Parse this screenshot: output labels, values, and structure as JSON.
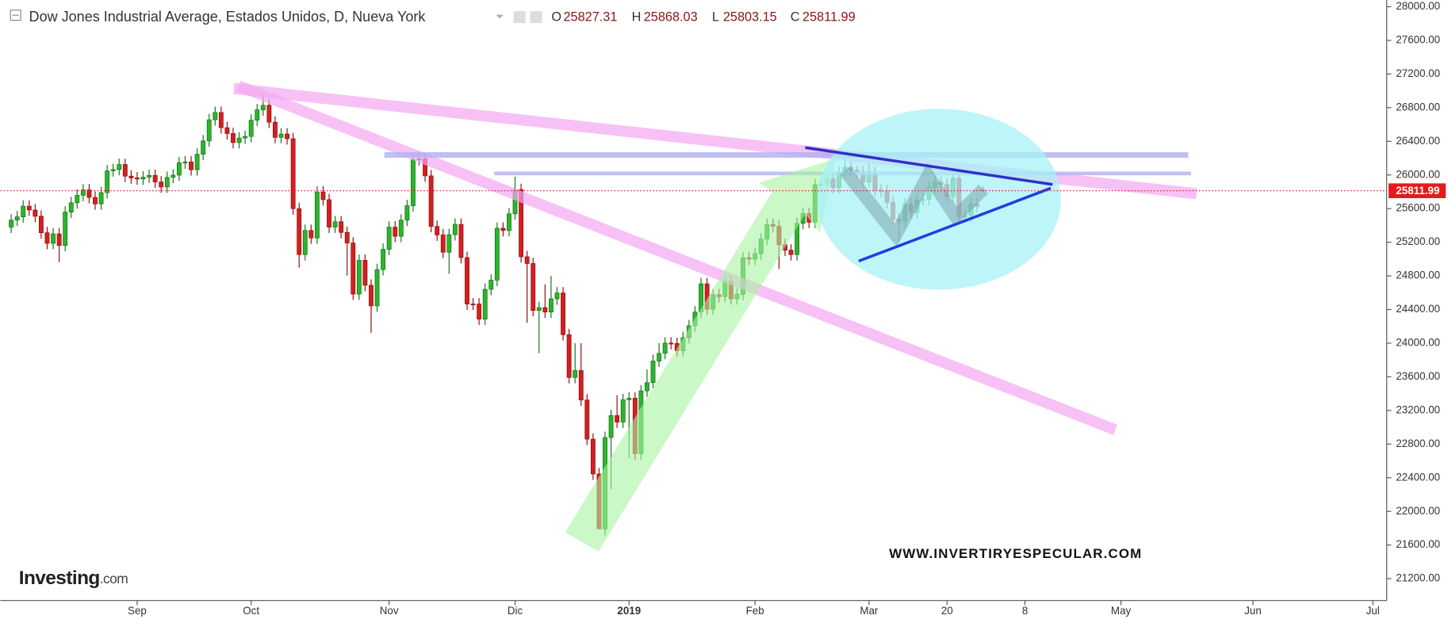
{
  "chart_data": {
    "type": "candlestick",
    "title": "Dow Jones Industrial Average, Estados Unidos, D, Nueva York",
    "ohlc_legend": [
      {
        "label": "O",
        "value": "25827.31"
      },
      {
        "label": "H",
        "value": "25868.03"
      },
      {
        "label": "L",
        "value": "25803.15"
      },
      {
        "label": "C",
        "value": "25811.99"
      }
    ],
    "last_price": 25811.99,
    "watermark": "WWW.INVERTIRYESPECULAR.COM",
    "logo": {
      "main": "Investing",
      "suffix": ".com"
    },
    "up_color": "#2bb52b",
    "down_color": "#d42020",
    "grid": false,
    "xlim": [
      -1.8,
      229.3
    ],
    "xticks": [
      {
        "value": 21,
        "label": "Sep"
      },
      {
        "value": 40,
        "label": "Oct"
      },
      {
        "value": 63,
        "label": "Nov"
      },
      {
        "value": 84,
        "label": "Dic"
      },
      {
        "value": 103,
        "label": "2019"
      },
      {
        "value": 124,
        "label": "Feb"
      },
      {
        "value": 143,
        "label": "Mar"
      },
      {
        "value": 156,
        "label": "20"
      },
      {
        "value": 169,
        "label": "8"
      },
      {
        "value": 185,
        "label": "May"
      },
      {
        "value": 207,
        "label": "Jun"
      },
      {
        "value": 227,
        "label": "Jul"
      }
    ],
    "ylim": [
      20940,
      28080
    ],
    "yticks": [
      {
        "value": 21200,
        "label": "21200.00"
      },
      {
        "value": 21600,
        "label": "21600.00"
      },
      {
        "value": 22000,
        "label": "22000.00"
      },
      {
        "value": 22400,
        "label": "22400.00"
      },
      {
        "value": 22800,
        "label": "22800.00"
      },
      {
        "value": 23200,
        "label": "23200.00"
      },
      {
        "value": 23600,
        "label": "23600.00"
      },
      {
        "value": 24000,
        "label": "24000.00"
      },
      {
        "value": 24400,
        "label": "24400.00"
      },
      {
        "value": 24800,
        "label": "24800.00"
      },
      {
        "value": 25200,
        "label": "25200.00"
      },
      {
        "value": 25600,
        "label": "25600.00"
      },
      {
        "value": 26000,
        "label": "26000.00"
      },
      {
        "value": 26400,
        "label": "26400.00"
      },
      {
        "value": 26800,
        "label": "26800.00"
      },
      {
        "value": 27200,
        "label": "27200.00"
      },
      {
        "value": 27600,
        "label": "27600.00"
      },
      {
        "value": 28000,
        "label": "28000.00"
      }
    ],
    "x": [
      0,
      1,
      2,
      3,
      4,
      5,
      6,
      7,
      8,
      9,
      10,
      11,
      12,
      13,
      14,
      15,
      16,
      17,
      18,
      19,
      20,
      21,
      22,
      23,
      24,
      25,
      26,
      27,
      28,
      29,
      30,
      31,
      32,
      33,
      34,
      35,
      36,
      37,
      38,
      39,
      40,
      41,
      42,
      43,
      44,
      45,
      46,
      47,
      48,
      49,
      50,
      51,
      52,
      53,
      54,
      55,
      56,
      57,
      58,
      59,
      60,
      61,
      62,
      63,
      64,
      65,
      66,
      67,
      68,
      69,
      70,
      71,
      72,
      73,
      74,
      75,
      76,
      77,
      78,
      79,
      80,
      81,
      82,
      83,
      84,
      85,
      86,
      87,
      88,
      89,
      90,
      91,
      92,
      93,
      94,
      95,
      96,
      97,
      98,
      99,
      100,
      101,
      102,
      103,
      104,
      105,
      106,
      107,
      108,
      109,
      110,
      111,
      112,
      113,
      114,
      115,
      116,
      117,
      118,
      119,
      120,
      121,
      122,
      123,
      124,
      125,
      126,
      127,
      128,
      129,
      130,
      131,
      132,
      133,
      134,
      135,
      136,
      137,
      138,
      139,
      140,
      141,
      142,
      143,
      144,
      145,
      146,
      147,
      148,
      149,
      150,
      151,
      152,
      153,
      154,
      155,
      156,
      157,
      158,
      159,
      160,
      161,
      162
    ],
    "open": [
      25380,
      25463,
      25502,
      25629,
      25583,
      25509,
      25313,
      25187,
      25299,
      25162,
      25558,
      25669,
      25758,
      25822,
      25733,
      25656,
      25790,
      26049,
      26064,
      26124,
      25986,
      25964,
      25952,
      25974,
      25995,
      25916,
      25857,
      25971,
      25998,
      26145,
      26154,
      26062,
      26246,
      26405,
      26656,
      26743,
      26562,
      26492,
      26385,
      26439,
      26458,
      26651,
      26774,
      26828,
      26627,
      26447,
      26487,
      26431,
      25599,
      25053,
      25340,
      25251,
      25798,
      25706,
      25380,
      25444,
      25317,
      25191,
      24584,
      24985,
      24689,
      24443,
      24875,
      25116,
      25380,
      25271,
      25462,
      25635,
      26181,
      26191,
      25989,
      25388,
      25287,
      25081,
      25290,
      25413,
      25018,
      24466,
      24465,
      24286,
      24640,
      24749,
      25366,
      25339,
      25538,
      25826,
      25027,
      24947,
      24389,
      24423,
      24370,
      24527,
      24597,
      24101,
      23592,
      23675,
      23324,
      22859,
      22445,
      21792,
      22878,
      23139,
      23062,
      23327,
      23346,
      22686,
      23433,
      23531,
      23787,
      23879,
      24001,
      23996,
      23910,
      24065,
      24207,
      24370,
      24706,
      24404,
      24575,
      24553,
      24737,
      24528,
      24580,
      25015,
      24999,
      25064,
      25239,
      25411,
      25390,
      25169,
      25106,
      25053,
      25425,
      25543,
      25439,
      25883,
      25891,
      25954,
      25850,
      26031,
      26091,
      26057,
      26037,
      25916,
      26026,
      25819,
      25806,
      25673,
      25473,
      25450,
      25650,
      25554,
      25703,
      25709,
      25849,
      25914,
      25887,
      25745,
      25962,
      25502,
      25516,
      25657,
      25827.31
    ],
    "high": [
      25533,
      25572,
      25699,
      25699,
      25653,
      25579,
      25383,
      25369,
      25369,
      25628,
      25739,
      25828,
      25892,
      25892,
      25803,
      25860,
      26119,
      26134,
      26194,
      26194,
      26056,
      26034,
      26044,
      26065,
      26065,
      25986,
      26041,
      26068,
      26215,
      26224,
      26224,
      26316,
      26475,
      26726,
      26813,
      26813,
      26632,
      26562,
      26509,
      26528,
      26721,
      26844,
      26951,
      26898,
      26697,
      26557,
      26557,
      26501,
      25669,
      25410,
      25410,
      25868,
      25868,
      25776,
      25514,
      25514,
      25387,
      25261,
      25055,
      25055,
      24759,
      24945,
      25186,
      25450,
      25450,
      25532,
      25705,
      26251,
      26277,
      26261,
      26059,
      25458,
      25357,
      25360,
      25483,
      25483,
      25088,
      24536,
      24535,
      24710,
      24819,
      25436,
      25436,
      25608,
      25980,
      25896,
      25097,
      25017,
      24493,
      24700,
      24800,
      24667,
      24667,
      24171,
      24000,
      24000,
      23394,
      22929,
      22515,
      22948,
      23209,
      23381,
      23397,
      23416,
      23416,
      23503,
      23687,
      23864,
      24002,
      24071,
      24071,
      24066,
      24135,
      24277,
      24440,
      24776,
      24776,
      24645,
      24645,
      24807,
      24807,
      24650,
      25085,
      25085,
      25134,
      25309,
      25481,
      25481,
      25460,
      25239,
      25176,
      25495,
      25613,
      25613,
      25953,
      25961,
      26024,
      26024,
      26101,
      26241,
      26161,
      26107,
      26107,
      26156,
      26096,
      25889,
      25876,
      25743,
      25543,
      25720,
      25720,
      25773,
      25779,
      25919,
      25984,
      25984,
      25957,
      26032,
      26032,
      25586,
      25727,
      25727,
      25868.03
    ],
    "low": [
      25310,
      25393,
      25432,
      25513,
      25439,
      25243,
      25117,
      25117,
      24965,
      25092,
      25488,
      25599,
      25688,
      25663,
      25586,
      25586,
      25720,
      25979,
      25994,
      25916,
      25894,
      25882,
      25882,
      25904,
      25846,
      25787,
      25787,
      25901,
      25928,
      26075,
      25992,
      25992,
      26176,
      26335,
      26586,
      26492,
      26422,
      26315,
      26315,
      26369,
      26388,
      26581,
      26704,
      26557,
      26377,
      26377,
      26361,
      25529,
      24899,
      24983,
      25181,
      25181,
      25636,
      25310,
      25310,
      25247,
      24804,
      24514,
      24514,
      24619,
      24123,
      24373,
      24805,
      25046,
      25201,
      25201,
      25392,
      25565,
      26111,
      25919,
      25318,
      25217,
      25011,
      24825,
      25220,
      24948,
      24396,
      24395,
      24216,
      24216,
      24570,
      24679,
      25269,
      25269,
      25468,
      24957,
      24242,
      24319,
      23881,
      24300,
      24300,
      24457,
      24031,
      23522,
      23522,
      23254,
      22789,
      22375,
      21792,
      21712,
      22267,
      22992,
      22992,
      22639,
      22616,
      22616,
      23363,
      23461,
      23717,
      23809,
      23926,
      23840,
      23840,
      23995,
      24137,
      24300,
      24334,
      24334,
      24483,
      24483,
      24458,
      24458,
      24510,
      24929,
      24929,
      24994,
      25169,
      25320,
      24883,
      25036,
      24983,
      24983,
      25355,
      25369,
      25369,
      25813,
      25821,
      25780,
      25780,
      25961,
      25987,
      25967,
      25846,
      25846,
      25749,
      25736,
      25603,
      25403,
      25208,
      25380,
      25484,
      25484,
      25633,
      25639,
      25779,
      25817,
      25675,
      25675,
      25432,
      25432,
      25446,
      25556,
      25803.15
    ],
    "close": [
      25463,
      25502,
      25629,
      25583,
      25509,
      25313,
      25187,
      25299,
      25162,
      25558,
      25669,
      25758,
      25822,
      25733,
      25656,
      25790,
      26049,
      26064,
      26124,
      25986,
      25964,
      25952,
      25974,
      25995,
      25916,
      25857,
      25971,
      25998,
      26145,
      26154,
      26062,
      26246,
      26405,
      26656,
      26743,
      26562,
      26492,
      26385,
      26439,
      26458,
      26651,
      26774,
      26828,
      26627,
      26447,
      26487,
      26431,
      25599,
      25053,
      25340,
      25251,
      25798,
      25706,
      25380,
      25444,
      25317,
      25191,
      24584,
      24985,
      24689,
      24443,
      24875,
      25116,
      25380,
      25271,
      25462,
      25635,
      26181,
      26191,
      25989,
      25388,
      25287,
      25081,
      25290,
      25413,
      25018,
      24466,
      24465,
      24286,
      24640,
      24749,
      25366,
      25339,
      25538,
      25826,
      25027,
      24947,
      24389,
      24423,
      24370,
      24527,
      24597,
      24101,
      23592,
      23675,
      23324,
      22859,
      22445,
      21792,
      22878,
      23139,
      23062,
      23327,
      23346,
      22686,
      23433,
      23531,
      23787,
      23879,
      24001,
      23996,
      23910,
      24065,
      24207,
      24370,
      24706,
      24404,
      24575,
      24553,
      24737,
      24528,
      24580,
      25015,
      24999,
      25064,
      25239,
      25411,
      25390,
      25169,
      25106,
      25053,
      25425,
      25543,
      25439,
      25883,
      25891,
      25954,
      25850,
      26031,
      26091,
      26057,
      26037,
      25916,
      26026,
      25819,
      25806,
      25673,
      25473,
      25450,
      25650,
      25554,
      25703,
      25709,
      25849,
      25914,
      25887,
      25745,
      25962,
      25502,
      25516,
      25657,
      25626,
      25811.99
    ]
  }
}
